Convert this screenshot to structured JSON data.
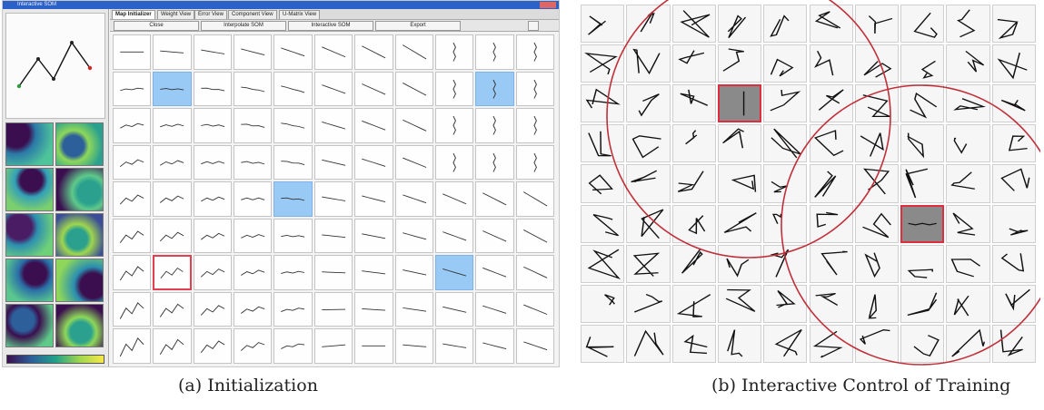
{
  "captions": {
    "a": "(a) Initialization",
    "b": "(b) Interactive Control of Training"
  },
  "panel_a": {
    "title": "Interactive SOM",
    "tabs": [
      "Map Initializer",
      "Weight View",
      "Error View",
      "Component View",
      "U-Matrix View"
    ],
    "toolbar": [
      "Close",
      "Interpolate SOM",
      "Interactive SOM",
      "Export"
    ],
    "rows": 9,
    "cols": 11,
    "blue_cells": [
      [
        1,
        1
      ],
      [
        1,
        9
      ],
      [
        4,
        4
      ],
      [
        6,
        8
      ]
    ],
    "red_cells": [
      [
        6,
        1
      ]
    ]
  },
  "panel_b": {
    "rows": 9,
    "cols": 10,
    "grey_cells": [
      [
        2,
        3
      ],
      [
        5,
        7
      ]
    ]
  },
  "colors": {
    "highlight_blue": "#99c9f5",
    "selection_red": "#e04050",
    "titlebar_blue": "#2b62c8"
  }
}
